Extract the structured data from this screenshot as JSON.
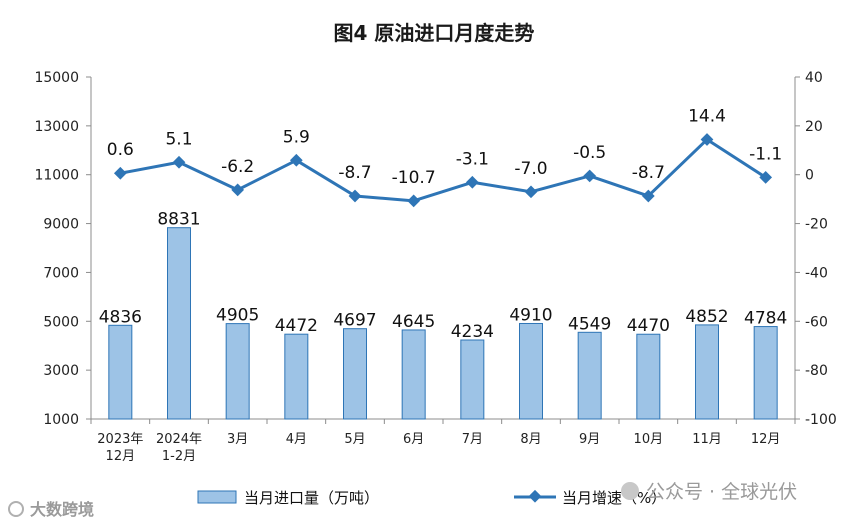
{
  "chart_data": {
    "type": "bar",
    "title": "图4  原油进口月度走势",
    "categories": [
      [
        "2023年",
        "12月"
      ],
      [
        "2024年",
        "1-2月"
      ],
      [
        "3月"
      ],
      [
        "4月"
      ],
      [
        "5月"
      ],
      [
        "6月"
      ],
      [
        "7月"
      ],
      [
        "8月"
      ],
      [
        "9月"
      ],
      [
        "10月"
      ],
      [
        "11月"
      ],
      [
        "12月"
      ]
    ],
    "left_axis": {
      "ylim": [
        1000,
        15000
      ],
      "ticks": [
        1000,
        3000,
        5000,
        7000,
        9000,
        11000,
        13000,
        15000
      ]
    },
    "right_axis": {
      "ylim": [
        -100,
        40
      ],
      "ticks": [
        -100,
        -80,
        -60,
        -40,
        -20,
        0,
        20,
        40
      ]
    },
    "series": [
      {
        "name": "当月进口量（万吨）",
        "type": "bar",
        "axis": "left",
        "color": "#9dc3e6",
        "values": [
          4836,
          8831,
          4905,
          4472,
          4697,
          4645,
          4234,
          4910,
          4549,
          4470,
          4852,
          4784
        ],
        "labels": [
          "4836",
          "8831",
          "4905",
          "4472",
          "4697",
          "4645",
          "4234",
          "4910",
          "4549",
          "4470",
          "4852",
          "4784"
        ]
      },
      {
        "name": "当月增速（%）",
        "type": "line",
        "axis": "right",
        "color": "#2e75b6",
        "values": [
          0.6,
          5.1,
          -6.2,
          5.9,
          -8.7,
          -10.7,
          -3.1,
          -7.0,
          -0.5,
          -8.7,
          14.4,
          -1.1
        ],
        "labels": [
          "0.6",
          "5.1",
          "-6.2",
          "5.9",
          "-8.7",
          "-10.7",
          "-3.1",
          "-7.0",
          "-0.5",
          "-8.7",
          "14.4",
          "-1.1"
        ]
      }
    ],
    "legend_position": "bottom",
    "grid": false
  },
  "watermarks": {
    "left": "大数跨境",
    "right": "公众号 · 全球光伏"
  },
  "icons": {
    "left_watermark_icon": "chat-bubble-icon",
    "right_watermark_icon": "wechat-icon"
  }
}
